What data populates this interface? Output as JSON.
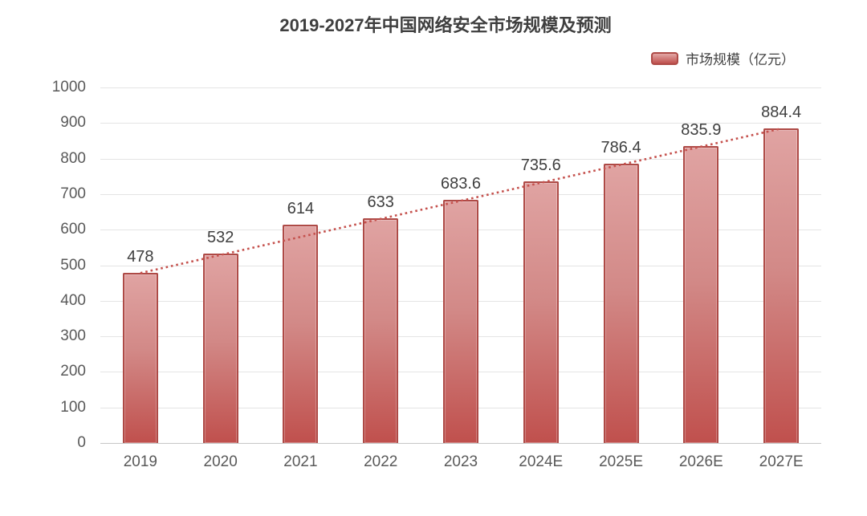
{
  "chart_data": {
    "type": "bar",
    "title": "2019-2027年中国网络安全市场规模及预测",
    "legend": [
      {
        "label": "市场规模（亿元）",
        "color": "#c0504d"
      }
    ],
    "legend_position": "top-right",
    "categories": [
      "2019",
      "2020",
      "2021",
      "2022",
      "2023",
      "2024E",
      "2025E",
      "2026E",
      "2027E"
    ],
    "values": [
      478,
      532,
      614,
      633,
      683.6,
      735.6,
      786.4,
      835.9,
      884.4
    ],
    "xlabel": "",
    "ylabel": "",
    "ylim": [
      0,
      1000
    ],
    "ytick_step": 100,
    "yticks": [
      0,
      100,
      200,
      300,
      400,
      500,
      600,
      700,
      800,
      900,
      1000
    ],
    "grid": true,
    "trendline": {
      "style": "dotted",
      "color": "#c5514d",
      "from_value": 478,
      "to_value": 884.4
    },
    "colors": {
      "bar_gradient_top": "#e0a3a2",
      "bar_gradient_bottom": "#c0504d",
      "bar_border": "#ae4a46",
      "gridline": "#e4e4e4",
      "axis_line": "#c6c6c6",
      "tick_text": "#595959",
      "label_text": "#3f3f3f",
      "title_text": "#3f3f3f"
    }
  }
}
